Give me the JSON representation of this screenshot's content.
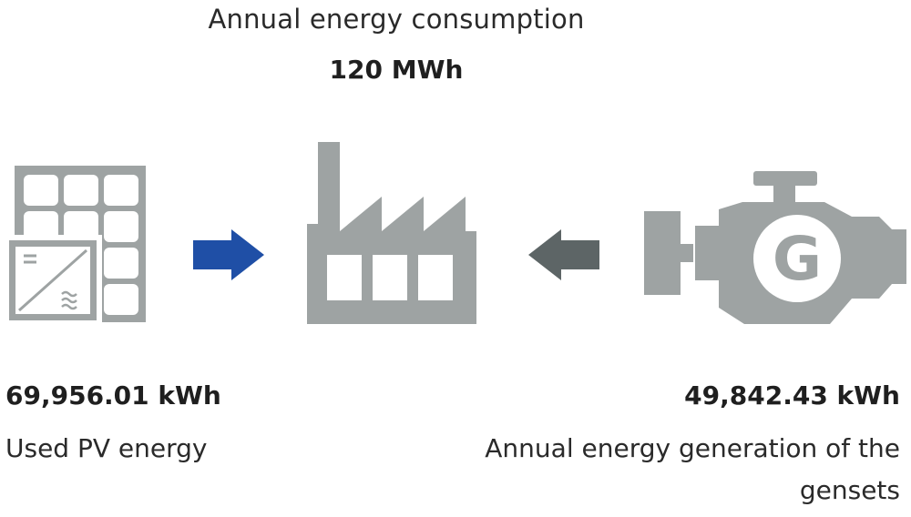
{
  "header": {
    "title": "Annual energy consumption",
    "total": "120 MWh"
  },
  "pv": {
    "value": "69,956.01 kWh",
    "label": "Used PV energy",
    "icon": "solar-panel-inverter-icon"
  },
  "consumer": {
    "icon": "factory-icon"
  },
  "genset": {
    "value": "49,842.43 kWh",
    "label": "Annual energy generation of the gensets",
    "icon": "genset-engine-icon",
    "icon_letter": "G"
  },
  "colors": {
    "icon_gray": "#9ea3a3",
    "pv_arrow": "#1f4fa6",
    "genset_arrow": "#5d6566"
  }
}
